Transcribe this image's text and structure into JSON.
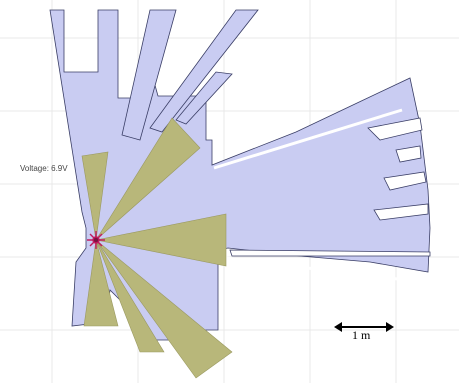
{
  "status": {
    "voltage_text": "Voltage: 6.9V"
  },
  "scale_bar": {
    "label": "1 m"
  },
  "colors": {
    "background": "#ffffff",
    "grid": "#e6e6e6",
    "free_space": "#c9ccf2",
    "obstacle_edge": "#2a2d55",
    "sensor_cone": "#b8b77a",
    "robot_marker": "#c21a5e",
    "scale_bar": "#000000"
  },
  "icons": {
    "robot": "robot-marker-icon",
    "scale_arrow": "double-arrow-icon"
  }
}
